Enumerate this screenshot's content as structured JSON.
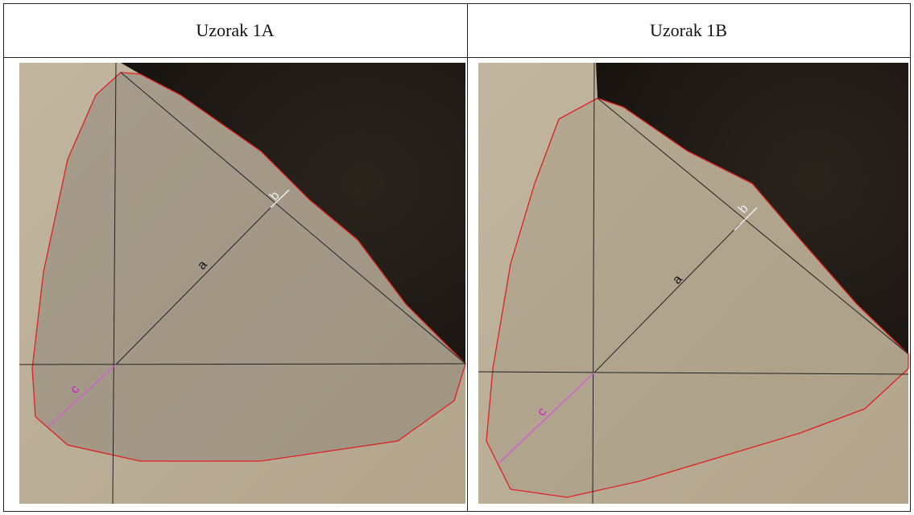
{
  "table": {
    "headers": [
      "Uzorak 1A",
      "Uzorak 1B"
    ],
    "images": [
      {
        "labels": [
          "a",
          "b",
          "c"
        ]
      },
      {
        "labels": [
          "a",
          "b",
          "c"
        ]
      }
    ]
  }
}
